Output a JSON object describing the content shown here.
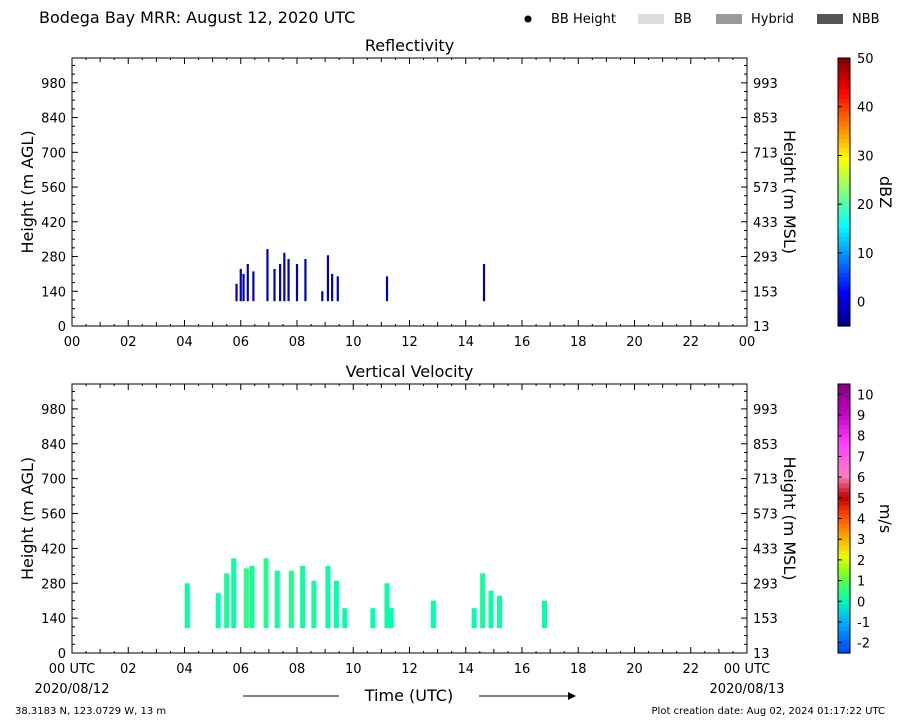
{
  "header": {
    "title": "Bodega Bay MRR:  August 12, 2020 UTC",
    "legend": [
      {
        "label": "BB Height",
        "kind": "dot",
        "color": "#000000"
      },
      {
        "label": "BB",
        "kind": "box",
        "color": "#dddddd"
      },
      {
        "label": "Hybrid",
        "kind": "box",
        "color": "#999999"
      },
      {
        "label": "NBB",
        "kind": "box",
        "color": "#555555"
      }
    ]
  },
  "footer": {
    "location": "38.3183 N, 123.0729 W, 13 m",
    "creation": "Plot creation date: Aug 02, 2024 01:17:22 UTC"
  },
  "chart_data": [
    {
      "type": "heatmap",
      "title": "Reflectivity",
      "ylabel_left": "Height (m AGL)",
      "ylabel_right": "Height (m MSL)",
      "x_ticks": [
        "00",
        "02",
        "04",
        "06",
        "08",
        "10",
        "12",
        "14",
        "16",
        "18",
        "20",
        "22",
        "00"
      ],
      "xlim_hours": [
        0,
        24
      ],
      "ylim_m_agl": [
        0,
        1080
      ],
      "y_ticks_left": [
        "0",
        "140",
        "280",
        "420",
        "560",
        "700",
        "840",
        "980"
      ],
      "y_ticks_right": [
        "13",
        "153",
        "293",
        "433",
        "573",
        "713",
        "853",
        "993"
      ],
      "colorbar": {
        "label": "dBZ",
        "range": [
          -5,
          50
        ],
        "ticks": [
          "0",
          "10",
          "20",
          "30",
          "40",
          "50"
        ],
        "tick_values": [
          0,
          10,
          20,
          30,
          40,
          50
        ]
      },
      "shower_columns": [
        {
          "hour": 5.85,
          "top_m": 170,
          "dbz": -2
        },
        {
          "hour": 6.0,
          "top_m": 230,
          "dbz": -2
        },
        {
          "hour": 6.1,
          "top_m": 210,
          "dbz": -2
        },
        {
          "hour": 6.25,
          "top_m": 250,
          "dbz": -2
        },
        {
          "hour": 6.45,
          "top_m": 220,
          "dbz": -2
        },
        {
          "hour": 6.95,
          "top_m": 310,
          "dbz": -2
        },
        {
          "hour": 7.2,
          "top_m": 230,
          "dbz": -2
        },
        {
          "hour": 7.4,
          "top_m": 250,
          "dbz": -2
        },
        {
          "hour": 7.55,
          "top_m": 295,
          "dbz": -2
        },
        {
          "hour": 7.7,
          "top_m": 270,
          "dbz": -2
        },
        {
          "hour": 8.0,
          "top_m": 250,
          "dbz": -2
        },
        {
          "hour": 8.3,
          "top_m": 270,
          "dbz": -2
        },
        {
          "hour": 8.9,
          "top_m": 140,
          "dbz": -2
        },
        {
          "hour": 9.1,
          "top_m": 285,
          "dbz": -2
        },
        {
          "hour": 9.25,
          "top_m": 210,
          "dbz": -2
        },
        {
          "hour": 9.45,
          "top_m": 200,
          "dbz": -2
        },
        {
          "hour": 11.2,
          "top_m": 200,
          "dbz": -2
        },
        {
          "hour": 14.65,
          "top_m": 250,
          "dbz": -3
        }
      ],
      "min_height_m": 100
    },
    {
      "type": "heatmap",
      "title": "Vertical Velocity",
      "ylabel_left": "Height (m AGL)",
      "ylabel_right": "Height (m MSL)",
      "xlabel": "Time (UTC)",
      "x_ticks": [
        "00 UTC",
        "02",
        "04",
        "06",
        "08",
        "10",
        "12",
        "14",
        "16",
        "18",
        "20",
        "22",
        "00 UTC"
      ],
      "x_sub_start": "2020/08/12",
      "x_sub_end": "2020/08/13",
      "xlim_hours": [
        0,
        24
      ],
      "ylim_m_agl": [
        0,
        1080
      ],
      "y_ticks_left": [
        "0",
        "140",
        "280",
        "420",
        "560",
        "700",
        "840",
        "980"
      ],
      "y_ticks_right": [
        "13",
        "153",
        "293",
        "433",
        "573",
        "713",
        "853",
        "993"
      ],
      "colorbar": {
        "label": "m/s",
        "range": [
          -2.5,
          10.5
        ],
        "ticks": [
          "-2",
          "-1",
          "0",
          "1",
          "2",
          "3",
          "4",
          "5",
          "6",
          "7",
          "8",
          "9",
          "10"
        ],
        "tick_values": [
          -2,
          -1,
          0,
          1,
          2,
          3,
          4,
          5,
          6,
          7,
          8,
          9,
          10
        ]
      },
      "shower_columns": [
        {
          "hour": 4.1,
          "top_m": 280,
          "ms": 0.2
        },
        {
          "hour": 5.2,
          "top_m": 240,
          "ms": 0.1
        },
        {
          "hour": 5.5,
          "top_m": 320,
          "ms": 0.3
        },
        {
          "hour": 5.75,
          "top_m": 380,
          "ms": 0.2
        },
        {
          "hour": 6.2,
          "top_m": 340,
          "ms": 0.5
        },
        {
          "hour": 6.4,
          "top_m": 350,
          "ms": 0.3
        },
        {
          "hour": 6.9,
          "top_m": 380,
          "ms": 0.4
        },
        {
          "hour": 7.3,
          "top_m": 330,
          "ms": 0.3
        },
        {
          "hour": 7.8,
          "top_m": 330,
          "ms": 0.4
        },
        {
          "hour": 8.2,
          "top_m": 350,
          "ms": 0.2
        },
        {
          "hour": 8.6,
          "top_m": 290,
          "ms": 0.3
        },
        {
          "hour": 9.1,
          "top_m": 350,
          "ms": 0.2
        },
        {
          "hour": 9.4,
          "top_m": 290,
          "ms": 0.1
        },
        {
          "hour": 9.7,
          "top_m": 180,
          "ms": 0.1
        },
        {
          "hour": 10.7,
          "top_m": 180,
          "ms": 0.1
        },
        {
          "hour": 11.2,
          "top_m": 280,
          "ms": 0.2
        },
        {
          "hour": 11.35,
          "top_m": 180,
          "ms": 0.1
        },
        {
          "hour": 12.85,
          "top_m": 210,
          "ms": 0.1
        },
        {
          "hour": 14.3,
          "top_m": 180,
          "ms": 0.1
        },
        {
          "hour": 14.6,
          "top_m": 320,
          "ms": 0.3
        },
        {
          "hour": 14.9,
          "top_m": 250,
          "ms": 0.2
        },
        {
          "hour": 15.2,
          "top_m": 230,
          "ms": 0.2
        },
        {
          "hour": 16.8,
          "top_m": 210,
          "ms": 0.1
        }
      ],
      "min_height_m": 100
    }
  ]
}
